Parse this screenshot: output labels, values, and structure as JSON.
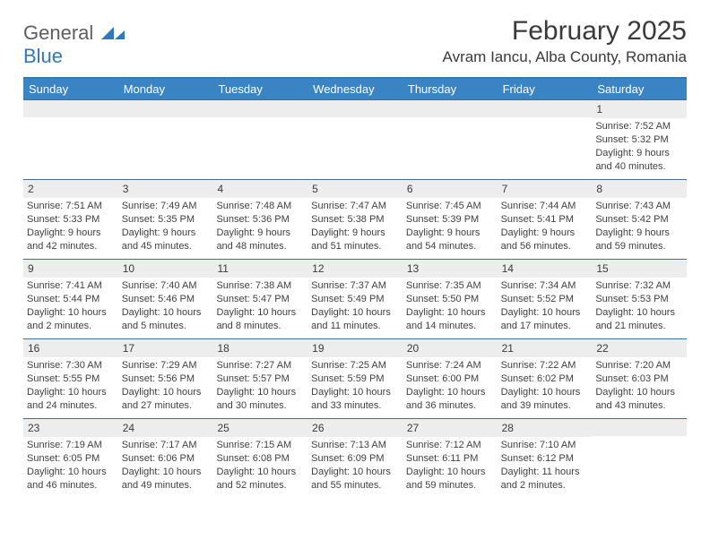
{
  "logo": {
    "word1": "General",
    "word2": "Blue"
  },
  "title": "February 2025",
  "location": "Avram Iancu, Alba County, Romania",
  "colors": {
    "header_bg": "#3b84c4",
    "header_text": "#ffffff",
    "accent": "#2f79bf",
    "row_divider": "#3b6f9e",
    "daynum_bg": "#ededed",
    "text": "#3a3a3a"
  },
  "day_headers": [
    "Sunday",
    "Monday",
    "Tuesday",
    "Wednesday",
    "Thursday",
    "Friday",
    "Saturday"
  ],
  "weeks": [
    [
      {
        "n": "",
        "sr": "",
        "ss": "",
        "dl": ""
      },
      {
        "n": "",
        "sr": "",
        "ss": "",
        "dl": ""
      },
      {
        "n": "",
        "sr": "",
        "ss": "",
        "dl": ""
      },
      {
        "n": "",
        "sr": "",
        "ss": "",
        "dl": ""
      },
      {
        "n": "",
        "sr": "",
        "ss": "",
        "dl": ""
      },
      {
        "n": "",
        "sr": "",
        "ss": "",
        "dl": ""
      },
      {
        "n": "1",
        "sr": "Sunrise: 7:52 AM",
        "ss": "Sunset: 5:32 PM",
        "dl": "Daylight: 9 hours and 40 minutes."
      }
    ],
    [
      {
        "n": "2",
        "sr": "Sunrise: 7:51 AM",
        "ss": "Sunset: 5:33 PM",
        "dl": "Daylight: 9 hours and 42 minutes."
      },
      {
        "n": "3",
        "sr": "Sunrise: 7:49 AM",
        "ss": "Sunset: 5:35 PM",
        "dl": "Daylight: 9 hours and 45 minutes."
      },
      {
        "n": "4",
        "sr": "Sunrise: 7:48 AM",
        "ss": "Sunset: 5:36 PM",
        "dl": "Daylight: 9 hours and 48 minutes."
      },
      {
        "n": "5",
        "sr": "Sunrise: 7:47 AM",
        "ss": "Sunset: 5:38 PM",
        "dl": "Daylight: 9 hours and 51 minutes."
      },
      {
        "n": "6",
        "sr": "Sunrise: 7:45 AM",
        "ss": "Sunset: 5:39 PM",
        "dl": "Daylight: 9 hours and 54 minutes."
      },
      {
        "n": "7",
        "sr": "Sunrise: 7:44 AM",
        "ss": "Sunset: 5:41 PM",
        "dl": "Daylight: 9 hours and 56 minutes."
      },
      {
        "n": "8",
        "sr": "Sunrise: 7:43 AM",
        "ss": "Sunset: 5:42 PM",
        "dl": "Daylight: 9 hours and 59 minutes."
      }
    ],
    [
      {
        "n": "9",
        "sr": "Sunrise: 7:41 AM",
        "ss": "Sunset: 5:44 PM",
        "dl": "Daylight: 10 hours and 2 minutes."
      },
      {
        "n": "10",
        "sr": "Sunrise: 7:40 AM",
        "ss": "Sunset: 5:46 PM",
        "dl": "Daylight: 10 hours and 5 minutes."
      },
      {
        "n": "11",
        "sr": "Sunrise: 7:38 AM",
        "ss": "Sunset: 5:47 PM",
        "dl": "Daylight: 10 hours and 8 minutes."
      },
      {
        "n": "12",
        "sr": "Sunrise: 7:37 AM",
        "ss": "Sunset: 5:49 PM",
        "dl": "Daylight: 10 hours and 11 minutes."
      },
      {
        "n": "13",
        "sr": "Sunrise: 7:35 AM",
        "ss": "Sunset: 5:50 PM",
        "dl": "Daylight: 10 hours and 14 minutes."
      },
      {
        "n": "14",
        "sr": "Sunrise: 7:34 AM",
        "ss": "Sunset: 5:52 PM",
        "dl": "Daylight: 10 hours and 17 minutes."
      },
      {
        "n": "15",
        "sr": "Sunrise: 7:32 AM",
        "ss": "Sunset: 5:53 PM",
        "dl": "Daylight: 10 hours and 21 minutes."
      }
    ],
    [
      {
        "n": "16",
        "sr": "Sunrise: 7:30 AM",
        "ss": "Sunset: 5:55 PM",
        "dl": "Daylight: 10 hours and 24 minutes."
      },
      {
        "n": "17",
        "sr": "Sunrise: 7:29 AM",
        "ss": "Sunset: 5:56 PM",
        "dl": "Daylight: 10 hours and 27 minutes."
      },
      {
        "n": "18",
        "sr": "Sunrise: 7:27 AM",
        "ss": "Sunset: 5:57 PM",
        "dl": "Daylight: 10 hours and 30 minutes."
      },
      {
        "n": "19",
        "sr": "Sunrise: 7:25 AM",
        "ss": "Sunset: 5:59 PM",
        "dl": "Daylight: 10 hours and 33 minutes."
      },
      {
        "n": "20",
        "sr": "Sunrise: 7:24 AM",
        "ss": "Sunset: 6:00 PM",
        "dl": "Daylight: 10 hours and 36 minutes."
      },
      {
        "n": "21",
        "sr": "Sunrise: 7:22 AM",
        "ss": "Sunset: 6:02 PM",
        "dl": "Daylight: 10 hours and 39 minutes."
      },
      {
        "n": "22",
        "sr": "Sunrise: 7:20 AM",
        "ss": "Sunset: 6:03 PM",
        "dl": "Daylight: 10 hours and 43 minutes."
      }
    ],
    [
      {
        "n": "23",
        "sr": "Sunrise: 7:19 AM",
        "ss": "Sunset: 6:05 PM",
        "dl": "Daylight: 10 hours and 46 minutes."
      },
      {
        "n": "24",
        "sr": "Sunrise: 7:17 AM",
        "ss": "Sunset: 6:06 PM",
        "dl": "Daylight: 10 hours and 49 minutes."
      },
      {
        "n": "25",
        "sr": "Sunrise: 7:15 AM",
        "ss": "Sunset: 6:08 PM",
        "dl": "Daylight: 10 hours and 52 minutes."
      },
      {
        "n": "26",
        "sr": "Sunrise: 7:13 AM",
        "ss": "Sunset: 6:09 PM",
        "dl": "Daylight: 10 hours and 55 minutes."
      },
      {
        "n": "27",
        "sr": "Sunrise: 7:12 AM",
        "ss": "Sunset: 6:11 PM",
        "dl": "Daylight: 10 hours and 59 minutes."
      },
      {
        "n": "28",
        "sr": "Sunrise: 7:10 AM",
        "ss": "Sunset: 6:12 PM",
        "dl": "Daylight: 11 hours and 2 minutes."
      },
      {
        "n": "",
        "sr": "",
        "ss": "",
        "dl": ""
      }
    ]
  ]
}
